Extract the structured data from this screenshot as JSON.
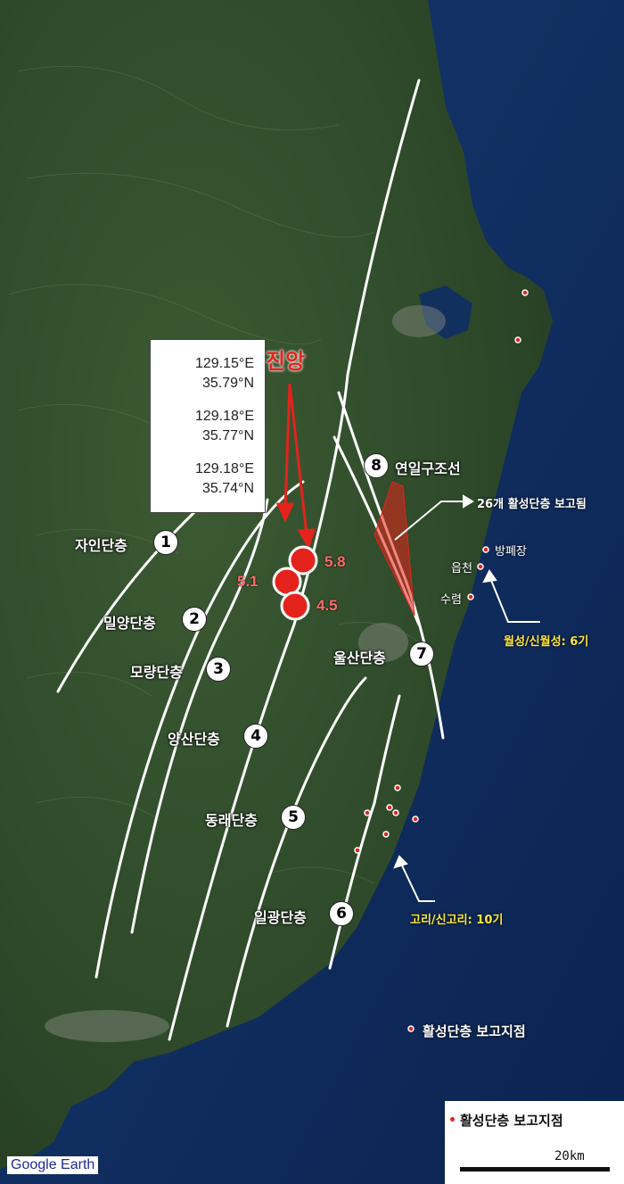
{
  "epicenter": {
    "title": "진앙",
    "coordinates": [
      {
        "lon": "129.15°E",
        "lat": "35.79°N"
      },
      {
        "lon": "129.18°E",
        "lat": "35.77°N"
      },
      {
        "lon": "129.18°E",
        "lat": "35.74°N"
      }
    ],
    "magnitudes": [
      "5.8",
      "5.1",
      "4.5"
    ]
  },
  "faults": [
    {
      "num": "1",
      "name": "자인단층"
    },
    {
      "num": "2",
      "name": "밀양단층"
    },
    {
      "num": "3",
      "name": "모량단층"
    },
    {
      "num": "4",
      "name": "양산단층"
    },
    {
      "num": "5",
      "name": "동래단층"
    },
    {
      "num": "6",
      "name": "일광단층"
    },
    {
      "num": "7",
      "name": "울산단층"
    },
    {
      "num": "8",
      "name": "연일구조선"
    }
  ],
  "callouts": {
    "active_faults": "26개 활성단층 보고됨",
    "wolseong": "월성/신월성: 6기",
    "kori": "고리/신고리: 10기"
  },
  "sites": [
    "방폐장",
    "읍천",
    "수렴"
  ],
  "map_legend_label": "활성단층 보고지점",
  "legend": {
    "label": "활성단층 보고지점",
    "scale": "20km"
  },
  "attribution": "Google Earth",
  "colors": {
    "land": "#2f4a2a",
    "sea": "#0f2d63",
    "fault_line": "#ffffff",
    "epicenter": "#e3231c",
    "wolseong_label": "#ffe63a"
  }
}
